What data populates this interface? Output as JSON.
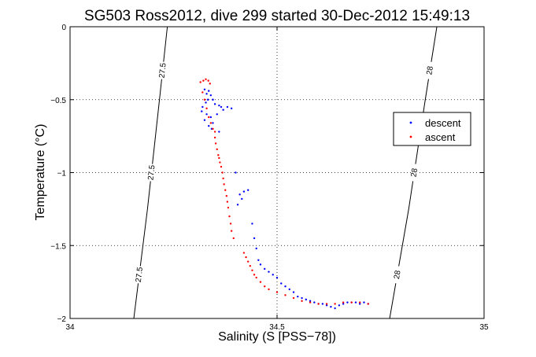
{
  "chart_data": {
    "type": "scatter",
    "title": "SG503 Ross2012, dive 299 started 30-Dec-2012 15:49:13",
    "xlabel": "Salinity (S [PSS−78])",
    "ylabel": "Temperature (°C)",
    "xlim": [
      34,
      35
    ],
    "ylim": [
      -2,
      0
    ],
    "xticks": [
      34,
      34.5,
      35
    ],
    "xtick_labels": [
      "34",
      "34.5",
      "35"
    ],
    "yticks": [
      0,
      -0.5,
      -1,
      -1.5,
      -2
    ],
    "ytick_labels": [
      "0",
      "−0.5",
      "−1",
      "−1.5",
      "−2"
    ],
    "grid": true,
    "legend_position": "right",
    "density_contours": [
      {
        "value": 27.5,
        "labels": [
          "27.5",
          "27.5",
          "27.5"
        ],
        "points": [
          [
            34.154,
            -2.0
          ],
          [
            34.187,
            -1.25
          ],
          [
            34.216,
            -0.5
          ],
          [
            34.235,
            0.0
          ]
        ]
      },
      {
        "value": 28,
        "labels": [
          "28",
          "28",
          "28"
        ],
        "points": [
          [
            34.772,
            -2.0
          ],
          [
            34.818,
            -1.25
          ],
          [
            34.858,
            -0.5
          ],
          [
            34.886,
            0.0
          ]
        ]
      }
    ],
    "series": [
      {
        "name": "descent",
        "color": "#0000ff",
        "marker": "dot",
        "points": [
          [
            34.325,
            -0.43
          ],
          [
            34.33,
            -0.46
          ],
          [
            34.335,
            -0.44
          ],
          [
            34.34,
            -0.47
          ],
          [
            34.333,
            -0.5
          ],
          [
            34.328,
            -0.52
          ],
          [
            34.345,
            -0.5
          ],
          [
            34.35,
            -0.53
          ],
          [
            34.36,
            -0.54
          ],
          [
            34.32,
            -0.55
          ],
          [
            34.318,
            -0.58
          ],
          [
            34.33,
            -0.6
          ],
          [
            34.34,
            -0.62
          ],
          [
            34.325,
            -0.64
          ],
          [
            34.335,
            -0.68
          ],
          [
            34.345,
            -0.66
          ],
          [
            34.355,
            -0.6
          ],
          [
            34.365,
            -0.55
          ],
          [
            34.37,
            -0.57
          ],
          [
            34.342,
            -0.7
          ],
          [
            34.36,
            -0.72
          ],
          [
            34.38,
            -0.55
          ],
          [
            34.39,
            -0.56
          ],
          [
            34.4,
            -1.0
          ],
          [
            34.41,
            -1.15
          ],
          [
            34.42,
            -1.13
          ],
          [
            34.43,
            -1.12
          ],
          [
            34.405,
            -1.22
          ],
          [
            34.415,
            -1.18
          ],
          [
            34.44,
            -1.35
          ],
          [
            34.445,
            -1.45
          ],
          [
            34.45,
            -1.52
          ],
          [
            34.455,
            -1.6
          ],
          [
            34.46,
            -1.63
          ],
          [
            34.47,
            -1.66
          ],
          [
            34.48,
            -1.68
          ],
          [
            34.49,
            -1.7
          ],
          [
            34.5,
            -1.72
          ],
          [
            34.51,
            -1.76
          ],
          [
            34.52,
            -1.78
          ],
          [
            34.53,
            -1.8
          ],
          [
            34.54,
            -1.82
          ],
          [
            34.55,
            -1.85
          ],
          [
            34.56,
            -1.86
          ],
          [
            34.57,
            -1.87
          ],
          [
            34.58,
            -1.88
          ],
          [
            34.59,
            -1.89
          ],
          [
            34.6,
            -1.9
          ],
          [
            34.61,
            -1.9
          ],
          [
            34.62,
            -1.91
          ],
          [
            34.63,
            -1.92
          ],
          [
            34.64,
            -1.93
          ],
          [
            34.65,
            -1.91
          ],
          [
            34.66,
            -1.9
          ],
          [
            34.67,
            -1.89
          ],
          [
            34.68,
            -1.89
          ],
          [
            34.69,
            -1.89
          ],
          [
            34.7,
            -1.9
          ],
          [
            34.71,
            -1.89
          ],
          [
            34.72,
            -1.9
          ]
        ]
      },
      {
        "name": "ascent",
        "color": "#ff0000",
        "marker": "dot",
        "points": [
          [
            34.315,
            -0.38
          ],
          [
            34.322,
            -0.37
          ],
          [
            34.328,
            -0.36
          ],
          [
            34.334,
            -0.37
          ],
          [
            34.338,
            -0.39
          ],
          [
            34.32,
            -0.45
          ],
          [
            34.325,
            -0.5
          ],
          [
            34.33,
            -0.56
          ],
          [
            34.335,
            -0.62
          ],
          [
            34.34,
            -0.66
          ],
          [
            34.345,
            -0.7
          ],
          [
            34.35,
            -0.72
          ],
          [
            34.35,
            -0.76
          ],
          [
            34.352,
            -0.8
          ],
          [
            34.355,
            -0.84
          ],
          [
            34.358,
            -0.88
          ],
          [
            34.36,
            -0.9
          ],
          [
            34.362,
            -0.93
          ],
          [
            34.365,
            -0.96
          ],
          [
            34.368,
            -1.0
          ],
          [
            34.37,
            -1.04
          ],
          [
            34.372,
            -1.08
          ],
          [
            34.375,
            -1.12
          ],
          [
            34.378,
            -1.16
          ],
          [
            34.38,
            -1.2
          ],
          [
            34.382,
            -1.24
          ],
          [
            34.385,
            -1.3
          ],
          [
            34.388,
            -1.35
          ],
          [
            34.39,
            -1.4
          ],
          [
            34.395,
            -1.45
          ],
          [
            34.42,
            -1.55
          ],
          [
            34.425,
            -1.58
          ],
          [
            34.43,
            -1.61
          ],
          [
            34.435,
            -1.64
          ],
          [
            34.44,
            -1.67
          ],
          [
            34.445,
            -1.7
          ],
          [
            34.45,
            -1.72
          ],
          [
            34.46,
            -1.75
          ],
          [
            34.47,
            -1.78
          ],
          [
            34.48,
            -1.8
          ],
          [
            34.5,
            -1.82
          ],
          [
            34.52,
            -1.84
          ],
          [
            34.54,
            -1.86
          ],
          [
            34.56,
            -1.88
          ],
          [
            34.58,
            -1.89
          ],
          [
            34.6,
            -1.9
          ],
          [
            34.62,
            -1.9
          ],
          [
            34.64,
            -1.9
          ],
          [
            34.66,
            -1.89
          ],
          [
            34.68,
            -1.89
          ],
          [
            34.7,
            -1.89
          ],
          [
            34.72,
            -1.9
          ]
        ]
      }
    ]
  }
}
